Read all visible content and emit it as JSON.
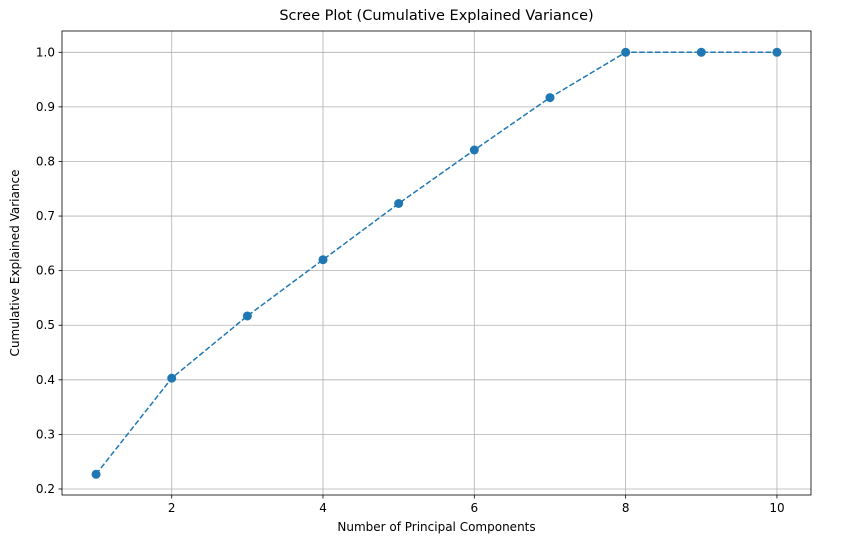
{
  "chart_data": {
    "type": "line",
    "title": "Scree Plot (Cumulative Explained Variance)",
    "xlabel": "Number of Principal Components",
    "ylabel": "Cumulative Explained Variance",
    "x": [
      1,
      2,
      3,
      4,
      5,
      6,
      7,
      8,
      9,
      10
    ],
    "series": [
      {
        "values": [
          0.227,
          0.403,
          0.517,
          0.62,
          0.723,
          0.821,
          0.917,
          1.0,
          1.0,
          1.0
        ]
      }
    ],
    "xlim": [
      0.55,
      10.45
    ],
    "ylim": [
      0.189,
      1.039
    ],
    "xticks": [
      2,
      4,
      6,
      8,
      10
    ],
    "yticks": [
      0.2,
      0.3,
      0.4,
      0.5,
      0.6,
      0.7,
      0.8,
      0.9,
      1.0
    ],
    "xtick_labels": [
      "2",
      "4",
      "6",
      "8",
      "10"
    ],
    "ytick_labels": [
      "0.2",
      "0.3",
      "0.4",
      "0.5",
      "0.6",
      "0.7",
      "0.8",
      "0.9",
      "1.0"
    ],
    "grid": true,
    "marker": "circle",
    "linestyle": "dashed",
    "color": "#1f77b4",
    "grid_color": "#b0b0b0"
  }
}
